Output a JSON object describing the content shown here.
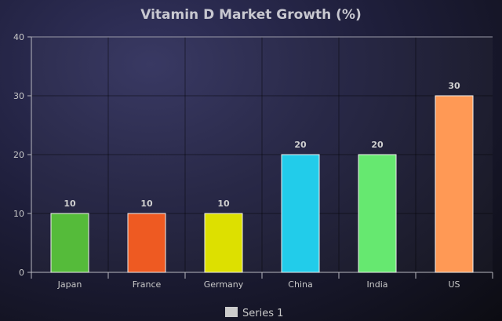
{
  "chart_data": {
    "type": "bar",
    "title": "Vitamin D Market Growth (%)",
    "categories": [
      "Japan",
      "France",
      "Germany",
      "China",
      "India",
      "US"
    ],
    "series": [
      {
        "name": "Series 1",
        "values": [
          10,
          10,
          10,
          20,
          20,
          30
        ],
        "colors": [
          "#55bb3a",
          "#ee5a22",
          "#dde000",
          "#22ccea",
          "#66e870",
          "#ff9955"
        ]
      }
    ],
    "ylim": [
      0,
      40
    ],
    "yticks": [
      0,
      10,
      20,
      30,
      40
    ],
    "grid": true,
    "data_labels": true,
    "legend_position": "bottom",
    "legend_color": "#cccccc"
  }
}
